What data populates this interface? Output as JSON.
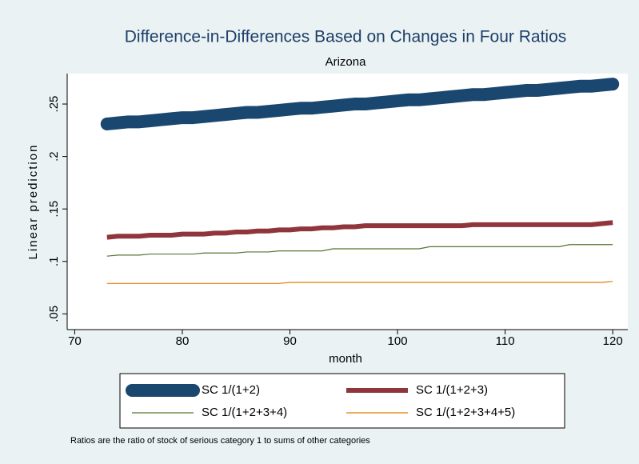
{
  "chart_data": {
    "type": "line",
    "title": "Difference-in-Differences Based on Changes in Four Ratios",
    "subtitle": "Arizona",
    "x_label": "month",
    "y_label": "Linear prediction",
    "note": "Ratios are the ratio of stock of serious category 1 to sums of other categories",
    "x": [
      73,
      74,
      75,
      76,
      77,
      78,
      79,
      80,
      81,
      82,
      83,
      84,
      85,
      86,
      87,
      88,
      89,
      90,
      91,
      92,
      93,
      94,
      95,
      96,
      97,
      98,
      99,
      100,
      101,
      102,
      103,
      104,
      105,
      106,
      107,
      108,
      109,
      110,
      111,
      112,
      113,
      114,
      115,
      116,
      117,
      118,
      119,
      120
    ],
    "series": [
      {
        "name": "SC 1/(1+2)",
        "color": "#1a476f",
        "width": 16,
        "values": [
          0.231,
          0.232,
          0.233,
          0.233,
          0.234,
          0.235,
          0.236,
          0.237,
          0.237,
          0.238,
          0.239,
          0.24,
          0.241,
          0.242,
          0.242,
          0.243,
          0.244,
          0.245,
          0.246,
          0.246,
          0.247,
          0.248,
          0.249,
          0.25,
          0.25,
          0.251,
          0.252,
          0.253,
          0.254,
          0.254,
          0.255,
          0.256,
          0.257,
          0.258,
          0.259,
          0.259,
          0.26,
          0.261,
          0.262,
          0.263,
          0.263,
          0.264,
          0.265,
          0.266,
          0.267,
          0.267,
          0.268,
          0.269
        ]
      },
      {
        "name": "SC 1/(1+2+3)",
        "color": "#90353b",
        "width": 6,
        "values": [
          0.123,
          0.124,
          0.124,
          0.124,
          0.125,
          0.125,
          0.125,
          0.126,
          0.126,
          0.126,
          0.127,
          0.127,
          0.128,
          0.128,
          0.129,
          0.129,
          0.13,
          0.13,
          0.131,
          0.131,
          0.132,
          0.132,
          0.133,
          0.133,
          0.134,
          0.134,
          0.134,
          0.134,
          0.134,
          0.134,
          0.134,
          0.134,
          0.134,
          0.134,
          0.135,
          0.135,
          0.135,
          0.135,
          0.135,
          0.135,
          0.135,
          0.135,
          0.135,
          0.135,
          0.135,
          0.135,
          0.136,
          0.137
        ]
      },
      {
        "name": "SC 1/(1+2+3+4)",
        "color": "#55752f",
        "width": 1.2,
        "values": [
          0.105,
          0.106,
          0.106,
          0.106,
          0.107,
          0.107,
          0.107,
          0.107,
          0.107,
          0.108,
          0.108,
          0.108,
          0.108,
          0.109,
          0.109,
          0.109,
          0.11,
          0.11,
          0.11,
          0.11,
          0.11,
          0.112,
          0.112,
          0.112,
          0.112,
          0.112,
          0.112,
          0.112,
          0.112,
          0.112,
          0.114,
          0.114,
          0.114,
          0.114,
          0.114,
          0.114,
          0.114,
          0.114,
          0.114,
          0.114,
          0.114,
          0.114,
          0.114,
          0.116,
          0.116,
          0.116,
          0.116,
          0.116
        ]
      },
      {
        "name": "SC 1/(1+2+3+4+5)",
        "color": "#e37e00",
        "width": 1.2,
        "values": [
          0.079,
          0.079,
          0.079,
          0.079,
          0.079,
          0.079,
          0.079,
          0.079,
          0.079,
          0.079,
          0.079,
          0.079,
          0.079,
          0.079,
          0.079,
          0.079,
          0.079,
          0.08,
          0.08,
          0.08,
          0.08,
          0.08,
          0.08,
          0.08,
          0.08,
          0.08,
          0.08,
          0.08,
          0.08,
          0.08,
          0.08,
          0.08,
          0.08,
          0.08,
          0.08,
          0.08,
          0.08,
          0.08,
          0.08,
          0.08,
          0.08,
          0.08,
          0.08,
          0.08,
          0.08,
          0.08,
          0.08,
          0.081
        ]
      }
    ],
    "xlim": [
      69.3,
      121.4
    ],
    "xticks": [
      70,
      80,
      90,
      100,
      110,
      120
    ],
    "ylim": [
      0.035,
      0.279
    ],
    "yticks": [
      {
        "value": 0.05,
        "label": ".05"
      },
      {
        "value": 0.1,
        "label": ".1"
      },
      {
        "value": 0.15,
        "label": ".15"
      },
      {
        "value": 0.2,
        "label": ".2"
      },
      {
        "value": 0.25,
        "label": ".25"
      }
    ],
    "grid": false,
    "legend_position": "bottom"
  }
}
